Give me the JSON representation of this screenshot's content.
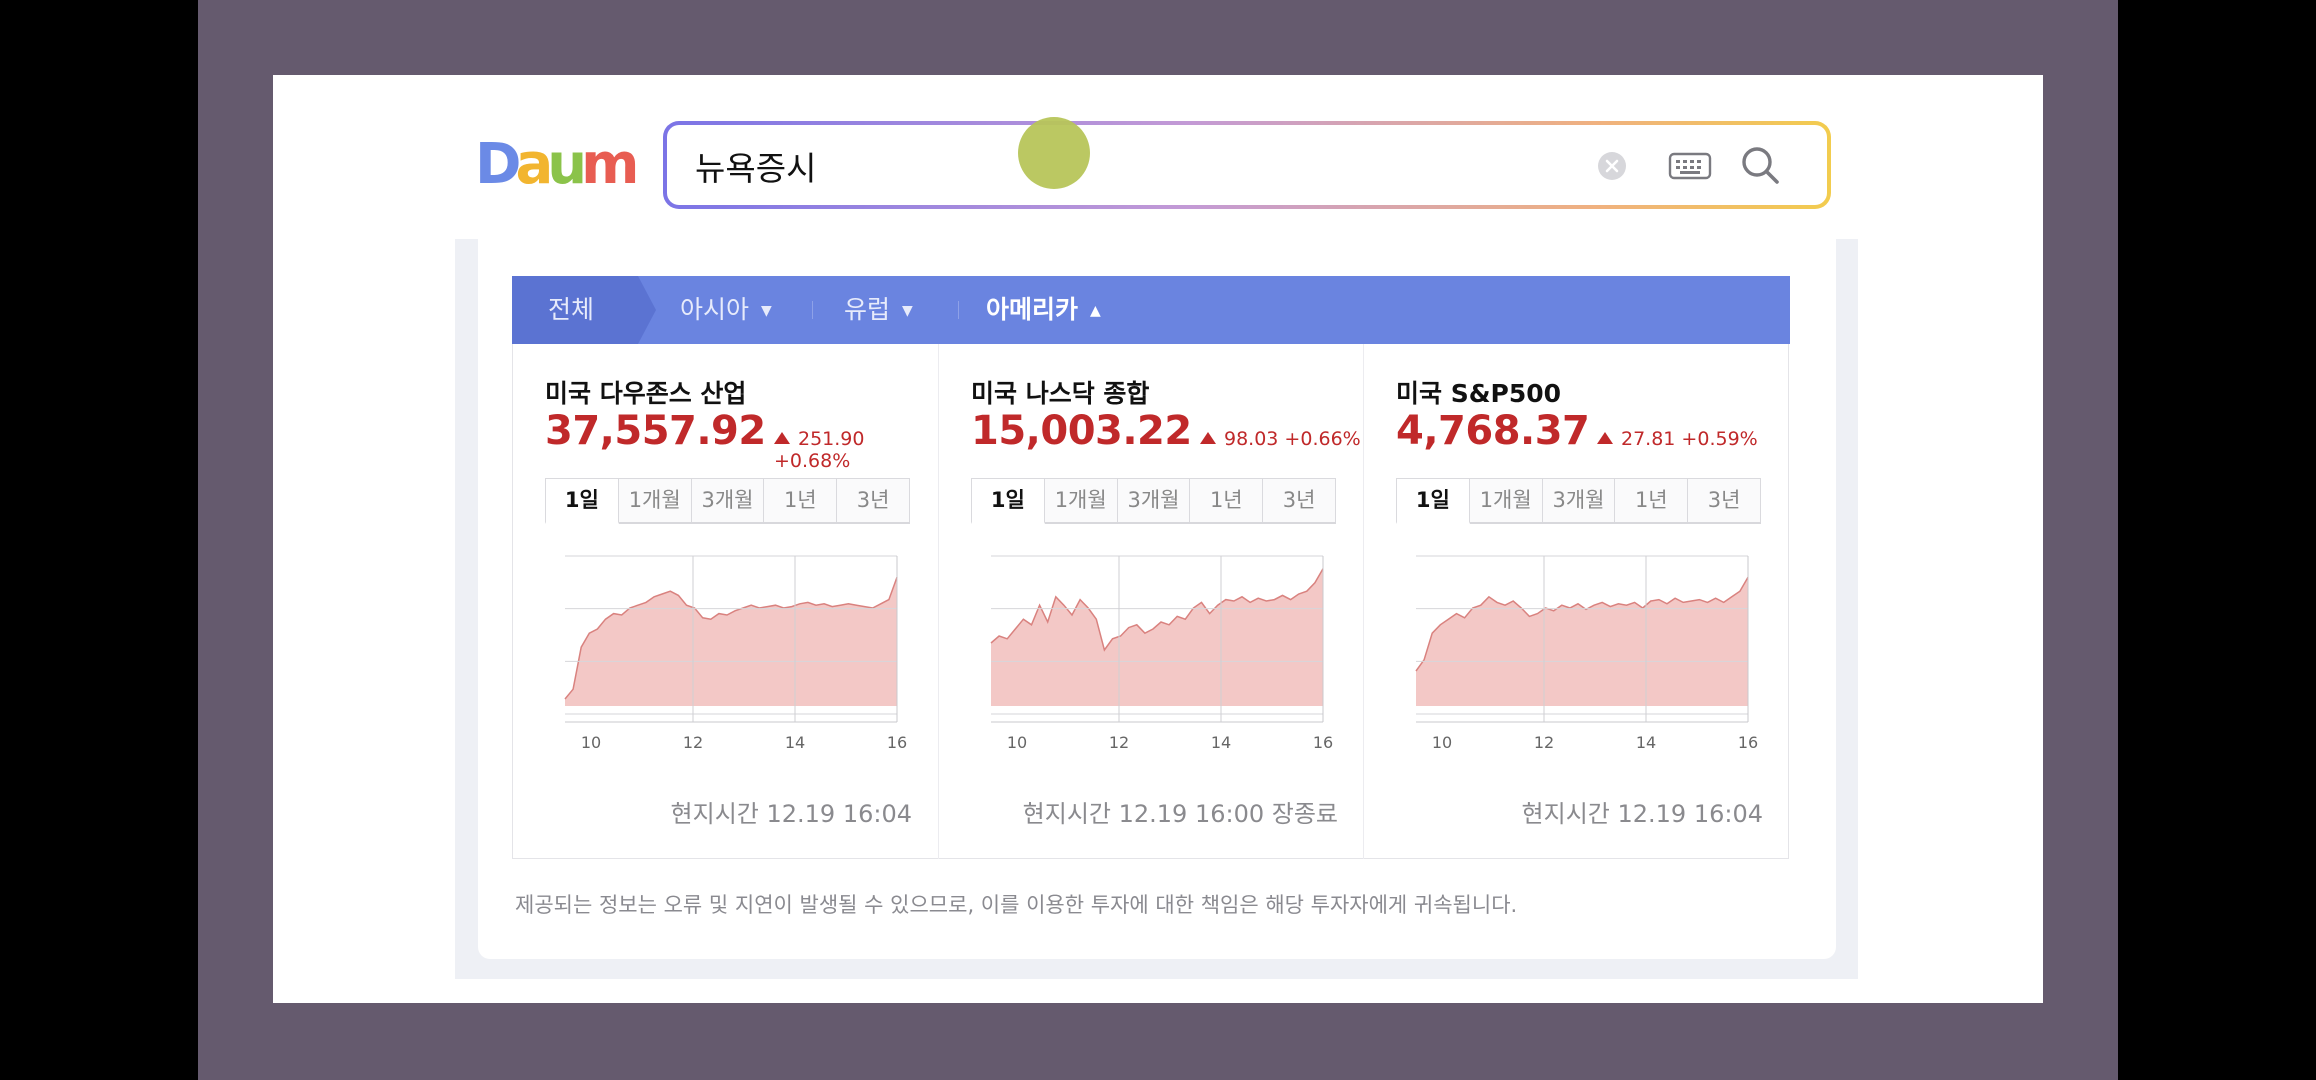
{
  "logo": {
    "text": "Daum",
    "letters": [
      {
        "ch": "D",
        "color": "#6b8ae6"
      },
      {
        "ch": "a",
        "color": "#f2b52f"
      },
      {
        "ch": "u",
        "color": "#8bc34a"
      },
      {
        "ch": "m",
        "color": "#e85d52"
      }
    ]
  },
  "search": {
    "value": "뉴욕증시",
    "placeholder": ""
  },
  "icons": {
    "clear": "clear-icon",
    "keyboard": "keyboard-icon",
    "search": "search-icon"
  },
  "regions": [
    {
      "label": "전체"
    },
    {
      "label": "아시아"
    },
    {
      "label": "유럽"
    },
    {
      "label": "아메리카"
    }
  ],
  "period_tabs": [
    "1일",
    "1개월",
    "3개월",
    "1년",
    "3년"
  ],
  "indices": [
    {
      "name": "미국 다우존스 산업",
      "value": "37,557.92",
      "change": "251.90 +0.68%",
      "time": "현지시간 12.19 16:04",
      "chart_data": {
        "type": "area",
        "x_ticks": [
          "10",
          "12",
          "14",
          "16"
        ],
        "series": [
          {
            "values": [
              0.05,
              0.12,
              0.42,
              0.52,
              0.55,
              0.62,
              0.66,
              0.65,
              0.7,
              0.72,
              0.74,
              0.78,
              0.8,
              0.82,
              0.79,
              0.72,
              0.7,
              0.63,
              0.62,
              0.66,
              0.65,
              0.68,
              0.7,
              0.72,
              0.7,
              0.71,
              0.72,
              0.7,
              0.71,
              0.73,
              0.74,
              0.72,
              0.73,
              0.71,
              0.72,
              0.73,
              0.72,
              0.71,
              0.7,
              0.73,
              0.76,
              0.92
            ]
          }
        ]
      }
    },
    {
      "name": "미국 나스닥 종합",
      "value": "15,003.22",
      "change": "98.03 +0.66%",
      "time": "현지시간 12.19 16:00 장종료",
      "chart_data": {
        "type": "area",
        "x_ticks": [
          "10",
          "12",
          "14",
          "16"
        ],
        "series": [
          {
            "values": [
              0.45,
              0.5,
              0.48,
              0.55,
              0.62,
              0.58,
              0.72,
              0.6,
              0.78,
              0.72,
              0.65,
              0.76,
              0.7,
              0.62,
              0.4,
              0.48,
              0.5,
              0.56,
              0.58,
              0.52,
              0.55,
              0.6,
              0.58,
              0.64,
              0.62,
              0.7,
              0.74,
              0.66,
              0.72,
              0.76,
              0.75,
              0.78,
              0.74,
              0.77,
              0.75,
              0.76,
              0.79,
              0.76,
              0.8,
              0.82,
              0.88,
              0.98
            ]
          }
        ]
      }
    },
    {
      "name": "미국 S&P500",
      "value": "4,768.37",
      "change": "27.81 +0.59%",
      "time": "현지시간 12.19 16:04",
      "chart_data": {
        "type": "area",
        "x_ticks": [
          "10",
          "12",
          "14",
          "16"
        ],
        "series": [
          {
            "values": [
              0.25,
              0.33,
              0.52,
              0.58,
              0.62,
              0.66,
              0.63,
              0.7,
              0.72,
              0.78,
              0.74,
              0.72,
              0.75,
              0.7,
              0.64,
              0.66,
              0.7,
              0.68,
              0.72,
              0.7,
              0.73,
              0.69,
              0.72,
              0.74,
              0.71,
              0.73,
              0.72,
              0.74,
              0.7,
              0.75,
              0.76,
              0.73,
              0.77,
              0.74,
              0.75,
              0.76,
              0.74,
              0.77,
              0.74,
              0.78,
              0.82,
              0.92
            ]
          }
        ]
      }
    }
  ],
  "disclaimer": "제공되는 정보는 오류 및 지연이 발생될 수 있으므로, 이를 이용한 투자에 대한 책임은 해당 투자자에게 귀속됩니다.",
  "colors": {
    "accent": "#6a84e0",
    "up": "#c0292a",
    "area_fill": "#f3c8c6",
    "area_line": "#d9827f"
  }
}
